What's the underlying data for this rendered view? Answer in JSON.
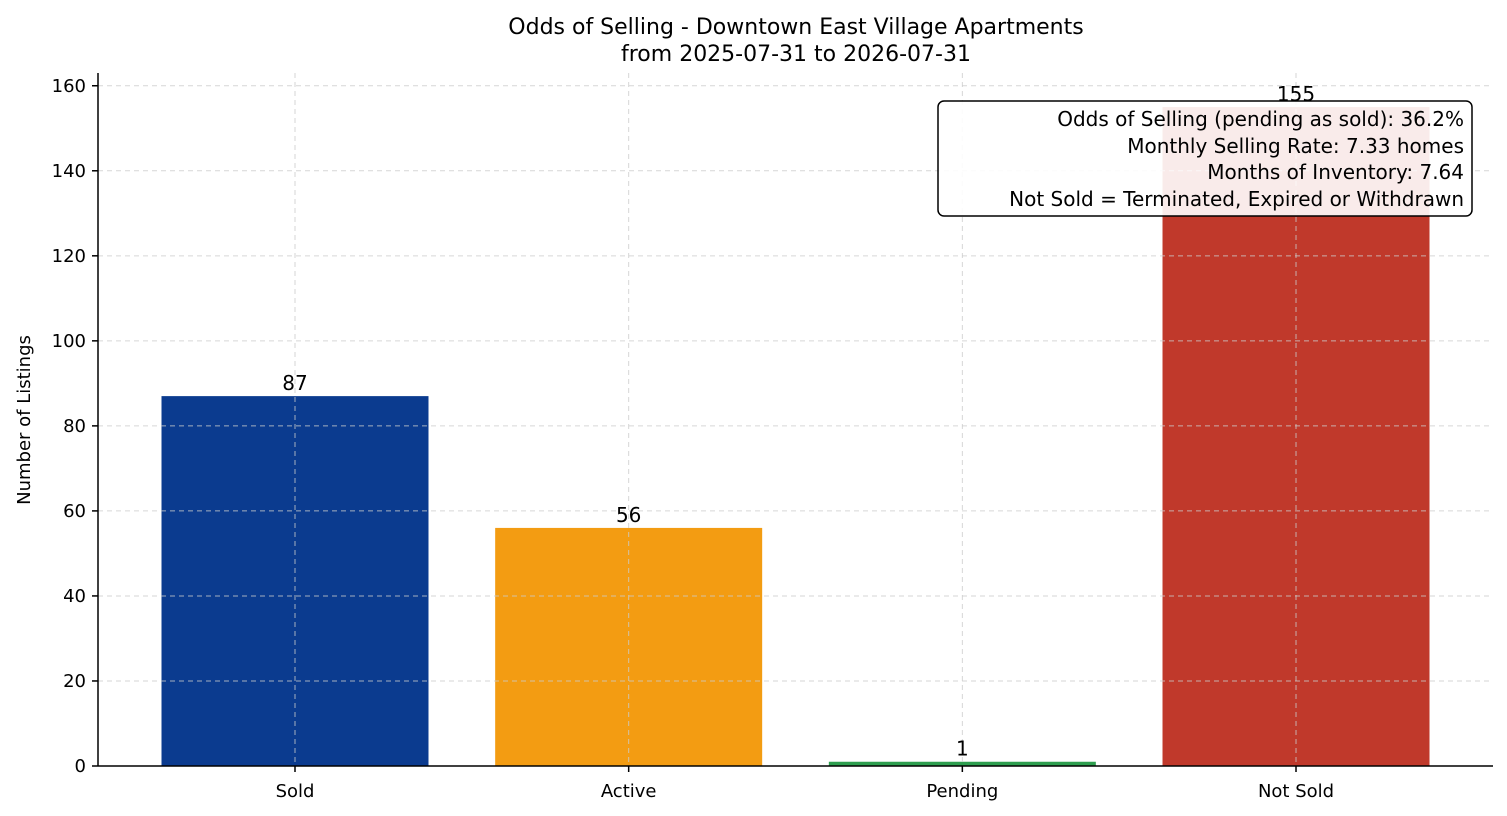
{
  "chart_data": {
    "type": "bar",
    "title": "Odds of Selling - Downtown East Village Apartments",
    "subtitle": "from 2025-07-31 to 2026-07-31",
    "xlabel": "",
    "ylabel": "Number of Listings",
    "categories": [
      "Sold",
      "Active",
      "Pending",
      "Not Sold"
    ],
    "values": [
      87,
      56,
      1,
      155
    ],
    "colors": [
      "#0b3b8f",
      "#f39c12",
      "#2e9e4f",
      "#c0392b"
    ],
    "ylim": [
      0,
      163
    ],
    "yticks": [
      0,
      20,
      40,
      60,
      80,
      100,
      120,
      140,
      160
    ],
    "grid": true,
    "annotation_box": {
      "placement": "top-right",
      "lines": [
        "Odds of Selling (pending as sold): 36.2%",
        "Monthly Selling Rate: 7.33 homes",
        "Months of Inventory: 7.64",
        "Not Sold = Terminated, Expired or Withdrawn"
      ]
    }
  }
}
